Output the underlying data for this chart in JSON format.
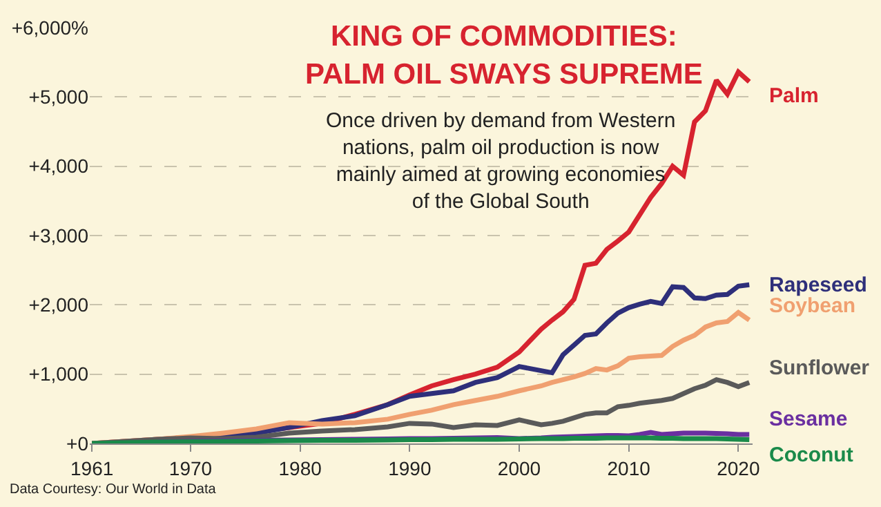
{
  "chart_data": {
    "type": "line",
    "title": "KING OF COMMODITIES:\nPALM OIL SWAYS SUPREME",
    "subtitle": "Once driven by demand from Western\nnations, palm oil production is now\nmainly aimed at growing economies\nof the Global South",
    "annotations": [
      "Data Courtesy: Our World in Data"
    ],
    "x": [
      1961,
      1964,
      1967,
      1970,
      1973,
      1976,
      1979,
      1982,
      1985,
      1988,
      1990,
      1992,
      1994,
      1996,
      1998,
      2000,
      2002,
      2003,
      2004,
      2005,
      2006,
      2007,
      2008,
      2009,
      2010,
      2011,
      2012,
      2013,
      2014,
      2015,
      2016,
      2017,
      2018,
      2019,
      2020,
      2021
    ],
    "series": [
      {
        "name": "Palm",
        "color": "#d7232f",
        "values": [
          0,
          30,
          60,
          90,
          130,
          170,
          230,
          290,
          420,
          560,
          700,
          830,
          920,
          1000,
          1100,
          1320,
          1650,
          1780,
          1900,
          2080,
          2570,
          2600,
          2800,
          2920,
          3050,
          3300,
          3550,
          3750,
          4000,
          3870,
          4640,
          4800,
          5240,
          5040,
          5360,
          5220
        ]
      },
      {
        "name": "Rapeseed",
        "color": "#2e2f7a",
        "values": [
          null,
          null,
          50,
          90,
          120,
          150,
          230,
          330,
          400,
          560,
          680,
          720,
          760,
          880,
          950,
          1110,
          1050,
          1020,
          1280,
          1420,
          1560,
          1580,
          1740,
          1880,
          1960,
          2010,
          2050,
          2020,
          2260,
          2250,
          2100,
          2090,
          2140,
          2150,
          2270,
          2290
        ]
      },
      {
        "name": "Soybean",
        "color": "#f0a070",
        "values": [
          0,
          30,
          60,
          100,
          150,
          210,
          300,
          280,
          300,
          350,
          420,
          480,
          560,
          620,
          680,
          760,
          830,
          880,
          920,
          960,
          1010,
          1080,
          1060,
          1120,
          1230,
          1250,
          1260,
          1270,
          1400,
          1490,
          1560,
          1680,
          1740,
          1760,
          1890,
          1780
        ]
      },
      {
        "name": "Sunflower",
        "color": "#5a5a5a",
        "values": [
          0,
          30,
          60,
          80,
          70,
          90,
          150,
          180,
          200,
          240,
          290,
          280,
          230,
          270,
          260,
          340,
          270,
          290,
          320,
          370,
          420,
          440,
          440,
          530,
          550,
          580,
          600,
          620,
          650,
          720,
          790,
          840,
          920,
          880,
          820,
          880
        ]
      },
      {
        "name": "Sesame",
        "color": "#6a2fa0",
        "values": [
          null,
          null,
          20,
          30,
          40,
          45,
          50,
          55,
          60,
          65,
          70,
          70,
          75,
          80,
          85,
          70,
          80,
          90,
          95,
          100,
          105,
          110,
          115,
          115,
          110,
          130,
          160,
          130,
          140,
          150,
          150,
          150,
          145,
          140,
          130,
          130
        ]
      },
      {
        "name": "Coconut",
        "color": "#1a8a4a",
        "values": [
          0,
          10,
          20,
          25,
          30,
          35,
          40,
          45,
          45,
          50,
          55,
          55,
          60,
          60,
          60,
          65,
          70,
          70,
          70,
          75,
          75,
          75,
          80,
          80,
          80,
          80,
          80,
          75,
          75,
          70,
          70,
          70,
          70,
          65,
          60,
          55
        ]
      }
    ],
    "xlim": [
      1960.8,
      2021.3
    ],
    "xticks": [
      1961,
      1970,
      1980,
      1990,
      2000,
      2010,
      2020
    ],
    "ylim": [
      0,
      6000
    ],
    "yticks": [
      {
        "value": 0,
        "label": "+0"
      },
      {
        "value": 1000,
        "label": "+1,000"
      },
      {
        "value": 2000,
        "label": "+2,000"
      },
      {
        "value": 3000,
        "label": "+3,000"
      },
      {
        "value": 4000,
        "label": "+4,000"
      },
      {
        "value": 5000,
        "label": "+5,000"
      },
      {
        "value": 6000,
        "label": "+6,000%"
      }
    ],
    "grid": "y",
    "legend": false,
    "marker": "none",
    "line_style": "solid"
  }
}
